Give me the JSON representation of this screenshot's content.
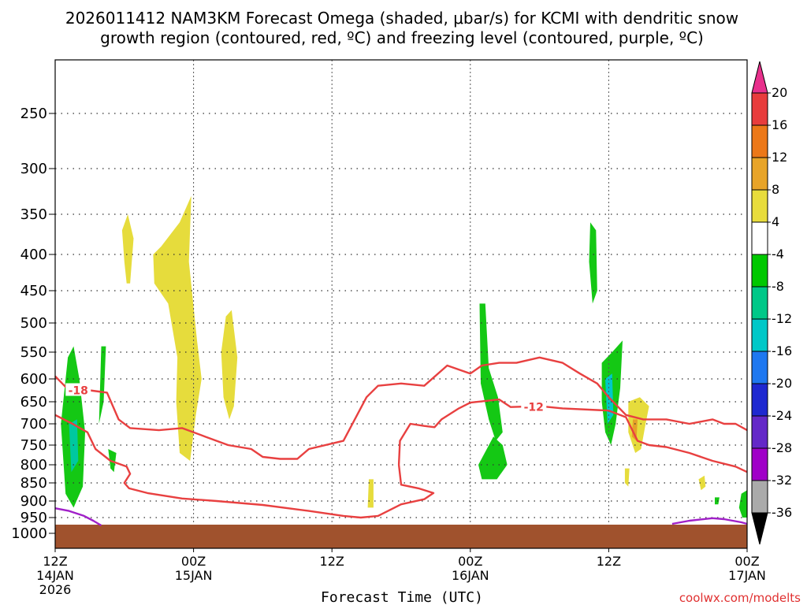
{
  "chart_data": {
    "type": "time-height-contour",
    "title_line1": "2026011412 NAM3KM Forecast Omega (shaded, μbar/s) for KCMI with dendritic snow",
    "title_line2": "growth region (contoured, red, ºC) and freezing level (contoured, purple, ºC)",
    "xlabel": "Forecast Time (UTC)",
    "credit": "coolwx.com/modelts",
    "x_range_hours": [
      0,
      60
    ],
    "x_ticks": [
      {
        "hour": 0,
        "line1": "12Z",
        "line2": "14JAN",
        "line3": "2026"
      },
      {
        "hour": 12,
        "line1": "00Z",
        "line2": "15JAN",
        "line3": ""
      },
      {
        "hour": 24,
        "line1": "12Z",
        "line2": "",
        "line3": ""
      },
      {
        "hour": 36,
        "line1": "00Z",
        "line2": "16JAN",
        "line3": ""
      },
      {
        "hour": 48,
        "line1": "12Z",
        "line2": "",
        "line3": ""
      },
      {
        "hour": 60,
        "line1": "00Z",
        "line2": "17JAN",
        "line3": ""
      }
    ],
    "y_ticks_hpa": [
      250,
      300,
      350,
      400,
      450,
      500,
      550,
      600,
      650,
      700,
      750,
      800,
      850,
      900,
      950,
      1000
    ],
    "colorbar": {
      "labels": [
        "20",
        "16",
        "12",
        "8",
        "4",
        "-4",
        "-8",
        "-12",
        "-16",
        "-20",
        "-24",
        "-28",
        "-32",
        "-36"
      ],
      "colors": [
        "#e8308c",
        "#e83c3c",
        "#ec7818",
        "#e8a428",
        "#e8dc3c",
        "#ffffff",
        "#00c800",
        "#00c888",
        "#00c8c8",
        "#1e78f0",
        "#1e28d0",
        "#6428c8",
        "#a000c8",
        "#aaaaaa",
        "#000000"
      ]
    },
    "omega_regions": [
      {
        "name": "rising-omega-1",
        "value_range": "-4 to -8",
        "color": "#14c814",
        "pts": [
          [
            1.1,
            560
          ],
          [
            1.6,
            540
          ],
          [
            2.1,
            600
          ],
          [
            2.6,
            720
          ],
          [
            2.4,
            860
          ],
          [
            1.6,
            920
          ],
          [
            0.9,
            880
          ],
          [
            0.5,
            700
          ]
        ]
      },
      {
        "name": "rising-omega-1-core",
        "value_range": "-8 to -12",
        "color": "#00c8a0",
        "pts": [
          [
            1.2,
            700
          ],
          [
            1.9,
            690
          ],
          [
            2.0,
            790
          ],
          [
            1.4,
            820
          ]
        ]
      },
      {
        "name": "rising-omega-2",
        "value_range": "-4 to -8",
        "color": "#14c814",
        "pts": [
          [
            4.0,
            540
          ],
          [
            4.4,
            540
          ],
          [
            4.2,
            650
          ],
          [
            3.8,
            700
          ]
        ]
      },
      {
        "name": "rising-omega-3",
        "value_range": "-4 to -8",
        "color": "#14c814",
        "pts": [
          [
            4.6,
            760
          ],
          [
            5.3,
            770
          ],
          [
            5.1,
            820
          ],
          [
            4.8,
            810
          ]
        ]
      },
      {
        "name": "sinking-omega-1",
        "value_range": "4 to 8",
        "color": "#e6dc3c",
        "pts": [
          [
            5.8,
            370
          ],
          [
            6.3,
            350
          ],
          [
            6.8,
            380
          ],
          [
            6.5,
            440
          ],
          [
            6.2,
            440
          ],
          [
            6.0,
            410
          ]
        ]
      },
      {
        "name": "sinking-omega-2",
        "value_range": "4 to 8",
        "color": "#e6dc3c",
        "pts": [
          [
            10.8,
            360
          ],
          [
            11.8,
            330
          ],
          [
            11.6,
            410
          ],
          [
            12.3,
            530
          ],
          [
            12.7,
            600
          ],
          [
            12.2,
            680
          ],
          [
            11.7,
            790
          ],
          [
            10.8,
            770
          ],
          [
            10.5,
            650
          ],
          [
            10.6,
            560
          ],
          [
            9.8,
            470
          ],
          [
            8.6,
            440
          ],
          [
            8.5,
            400
          ],
          [
            9.2,
            390
          ]
        ]
      },
      {
        "name": "sinking-omega-3",
        "value_range": "4 to 8",
        "color": "#e6dc3c",
        "pts": [
          [
            14.8,
            490
          ],
          [
            15.3,
            480
          ],
          [
            15.8,
            560
          ],
          [
            15.5,
            660
          ],
          [
            15.1,
            690
          ],
          [
            14.6,
            640
          ],
          [
            14.4,
            550
          ]
        ]
      },
      {
        "name": "sinking-omega-4",
        "value_range": "4 to 8",
        "color": "#e6dc3c",
        "pts": [
          [
            27.2,
            840
          ],
          [
            27.6,
            840
          ],
          [
            27.6,
            920
          ],
          [
            27.1,
            920
          ]
        ]
      },
      {
        "name": "rising-omega-4",
        "value_range": "-4 to -8",
        "color": "#14c814",
        "pts": [
          [
            36.8,
            470
          ],
          [
            37.3,
            470
          ],
          [
            37.6,
            580
          ],
          [
            38.4,
            640
          ],
          [
            38.8,
            720
          ],
          [
            38.2,
            740
          ],
          [
            37.6,
            690
          ],
          [
            36.9,
            610
          ]
        ]
      },
      {
        "name": "rising-omega-5",
        "value_range": "-4 to -8",
        "color": "#14c814",
        "pts": [
          [
            38.0,
            730
          ],
          [
            38.8,
            750
          ],
          [
            39.2,
            800
          ],
          [
            38.3,
            840
          ],
          [
            37.0,
            840
          ],
          [
            36.7,
            800
          ]
        ]
      },
      {
        "name": "rising-omega-6",
        "value_range": "-4 to -8",
        "color": "#14c814",
        "pts": [
          [
            46.4,
            360
          ],
          [
            46.9,
            370
          ],
          [
            47.0,
            450
          ],
          [
            46.6,
            470
          ],
          [
            46.3,
            410
          ]
        ]
      },
      {
        "name": "rising-omega-7",
        "value_range": "-4 to -8",
        "color": "#14c814",
        "pts": [
          [
            47.4,
            570
          ],
          [
            48.3,
            550
          ],
          [
            49.2,
            530
          ],
          [
            49.0,
            620
          ],
          [
            48.6,
            700
          ],
          [
            48.2,
            750
          ],
          [
            47.7,
            720
          ],
          [
            47.4,
            650
          ]
        ]
      },
      {
        "name": "rising-omega-7-core",
        "value_range": "-8 to -16",
        "color": "#00c8c8",
        "pts": [
          [
            47.7,
            600
          ],
          [
            48.3,
            590
          ],
          [
            48.4,
            680
          ],
          [
            47.9,
            700
          ]
        ]
      },
      {
        "name": "sinking-omega-5",
        "value_range": "4 to 8",
        "color": "#e6dc3c",
        "pts": [
          [
            49.7,
            650
          ],
          [
            50.7,
            640
          ],
          [
            51.5,
            660
          ],
          [
            51.2,
            700
          ],
          [
            50.8,
            760
          ],
          [
            50.3,
            770
          ],
          [
            49.7,
            720
          ]
        ]
      },
      {
        "name": "sinking-omega-5-core",
        "value_range": "8 to 12",
        "color": "#e6a028",
        "pts": [
          [
            50.1,
            690
          ],
          [
            50.5,
            690
          ],
          [
            50.4,
            740
          ],
          [
            50.0,
            730
          ]
        ]
      },
      {
        "name": "sinking-omega-6",
        "value_range": "4 to 8",
        "color": "#e6dc3c",
        "pts": [
          [
            49.4,
            810
          ],
          [
            49.8,
            810
          ],
          [
            49.7,
            860
          ],
          [
            49.4,
            850
          ]
        ]
      },
      {
        "name": "sinking-omega-7",
        "value_range": "4 to 8",
        "color": "#e6dc3c",
        "pts": [
          [
            55.8,
            840
          ],
          [
            56.3,
            830
          ],
          [
            56.4,
            860
          ],
          [
            56.0,
            870
          ]
        ]
      },
      {
        "name": "rising-omega-8",
        "value_range": "-4 to -8",
        "color": "#14c814",
        "pts": [
          [
            57.2,
            890
          ],
          [
            57.6,
            890
          ],
          [
            57.5,
            910
          ],
          [
            57.2,
            910
          ]
        ]
      },
      {
        "name": "rising-omega-9",
        "value_range": "-4 to -8",
        "color": "#14c814",
        "pts": [
          [
            59.5,
            880
          ],
          [
            60,
            870
          ],
          [
            60,
            950
          ],
          [
            59.6,
            950
          ],
          [
            59.3,
            920
          ]
        ]
      }
    ],
    "dgz_contours": [
      {
        "name": "dgz-minus18-contour",
        "label": "-18",
        "color": "#e84040",
        "label_at": [
          2.0,
          625
        ],
        "pts": [
          [
            0,
            595
          ],
          [
            1.0,
            620
          ],
          [
            3.0,
            625
          ],
          [
            4.5,
            630
          ],
          [
            5.5,
            690
          ],
          [
            6.5,
            710
          ],
          [
            9.0,
            715
          ],
          [
            11.0,
            710
          ],
          [
            13.0,
            730
          ],
          [
            15.0,
            750
          ],
          [
            17.0,
            760
          ],
          [
            18.0,
            780
          ],
          [
            19.5,
            785
          ],
          [
            21.0,
            785
          ],
          [
            22.0,
            760
          ],
          [
            25.0,
            740
          ],
          [
            27.0,
            640
          ],
          [
            28.0,
            615
          ],
          [
            30.0,
            610
          ],
          [
            32.0,
            615
          ],
          [
            34.0,
            575
          ],
          [
            36.0,
            590
          ],
          [
            37.0,
            575
          ],
          [
            38.5,
            570
          ],
          [
            40.0,
            570
          ],
          [
            42.0,
            560
          ],
          [
            44.0,
            570
          ],
          [
            45.5,
            590
          ],
          [
            47.0,
            610
          ],
          [
            48.0,
            640
          ],
          [
            49.5,
            680
          ],
          [
            51.0,
            690
          ],
          [
            53.0,
            690
          ],
          [
            55.0,
            700
          ],
          [
            57.0,
            690
          ],
          [
            58.0,
            700
          ],
          [
            59.0,
            700
          ],
          [
            60,
            715
          ]
        ]
      },
      {
        "name": "dgz-minus12-contour",
        "label": "-12",
        "color": "#e84040",
        "label_at": [
          41.5,
          662
        ],
        "pts": [
          [
            0,
            680
          ],
          [
            1.5,
            700
          ],
          [
            2.8,
            720
          ],
          [
            3.5,
            760
          ],
          [
            4.8,
            790
          ],
          [
            6.2,
            805
          ],
          [
            6.5,
            825
          ],
          [
            6.0,
            850
          ],
          [
            6.4,
            865
          ],
          [
            8.0,
            878
          ],
          [
            11.0,
            893
          ],
          [
            14.0,
            900
          ],
          [
            18.0,
            912
          ],
          [
            22.0,
            930
          ],
          [
            25.0,
            945
          ],
          [
            26.5,
            950
          ],
          [
            28.0,
            945
          ],
          [
            30.0,
            910
          ],
          [
            32.0,
            895
          ],
          [
            32.8,
            878
          ],
          [
            31.5,
            865
          ],
          [
            30.0,
            855
          ],
          [
            29.8,
            800
          ],
          [
            29.9,
            740
          ],
          [
            30.8,
            700
          ],
          [
            32.0,
            705
          ],
          [
            32.9,
            708
          ],
          [
            33.5,
            690
          ],
          [
            35.0,
            665
          ],
          [
            36.0,
            652
          ],
          [
            38.5,
            645
          ],
          [
            39.5,
            662
          ],
          [
            42.0,
            660
          ],
          [
            44.0,
            665
          ],
          [
            48.0,
            670
          ],
          [
            49.5,
            685
          ],
          [
            50.5,
            740
          ],
          [
            51.5,
            750
          ],
          [
            53.0,
            755
          ],
          [
            55.0,
            770
          ],
          [
            57.0,
            790
          ],
          [
            59.0,
            805
          ],
          [
            60,
            820
          ]
        ]
      }
    ],
    "freezing_level_contours": [
      {
        "name": "freezing-level-contour-1",
        "color": "#a020c8",
        "pts": [
          [
            0,
            922
          ],
          [
            1.2,
            930
          ],
          [
            2.5,
            945
          ],
          [
            3.3,
            960
          ],
          [
            4.0,
            975
          ]
        ]
      },
      {
        "name": "freezing-level-contour-2",
        "color": "#a020c8",
        "pts": [
          [
            53.5,
            970
          ],
          [
            55.0,
            960
          ],
          [
            57.0,
            952
          ],
          [
            58.0,
            955
          ],
          [
            59.5,
            965
          ],
          [
            60,
            970
          ]
        ]
      }
    ]
  }
}
